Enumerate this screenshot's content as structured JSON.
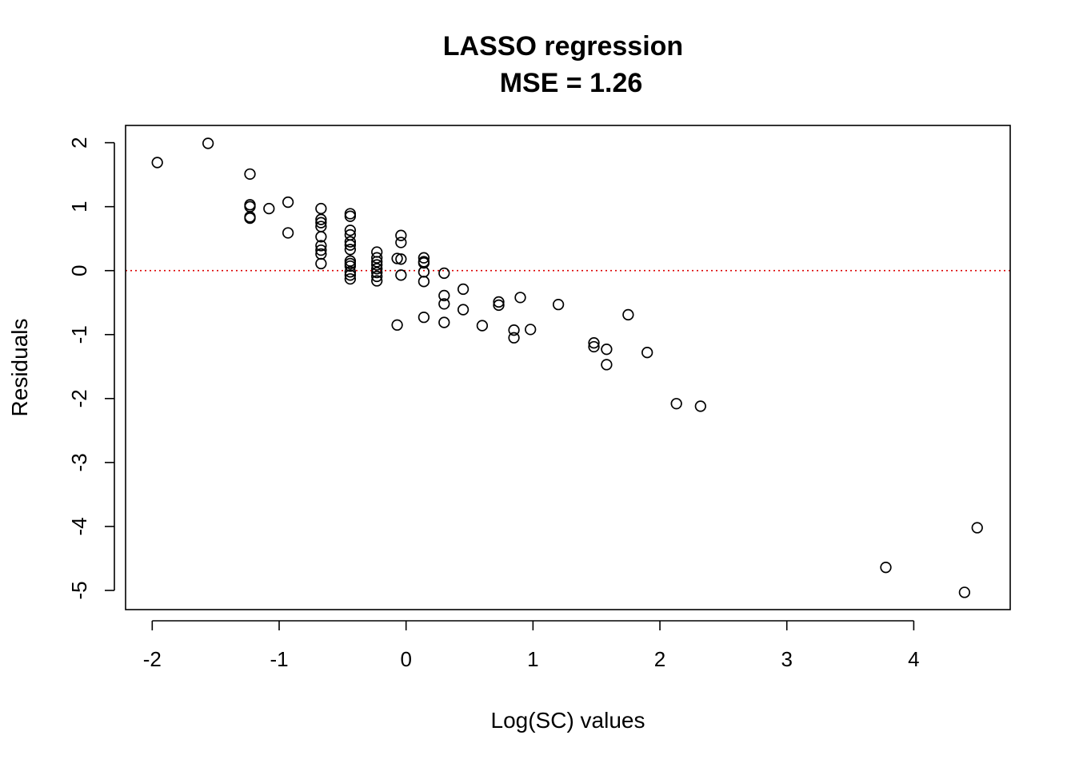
{
  "chart_data": {
    "type": "scatter",
    "title": "LASSO regression",
    "subtitle": "MSE = 1.26",
    "xlabel": "Log(SC) values",
    "ylabel": "Residuals",
    "xlim": [
      -2.21,
      4.76
    ],
    "ylim": [
      -5.3,
      2.27
    ],
    "xticks": [
      -2,
      -1,
      0,
      1,
      2,
      3,
      4
    ],
    "yticks": [
      -5,
      -4,
      -3,
      -2,
      -1,
      0,
      1,
      2
    ],
    "reference_line": {
      "y": 0,
      "color": "#dd0000",
      "style": "dotted"
    },
    "marker": {
      "shape": "open-circle",
      "color": "#000000"
    },
    "grid": false,
    "points": [
      {
        "x": -1.96,
        "y": 1.69
      },
      {
        "x": -1.56,
        "y": 1.99
      },
      {
        "x": -1.23,
        "y": 1.51
      },
      {
        "x": -1.23,
        "y": 1.03
      },
      {
        "x": -1.23,
        "y": 1.0
      },
      {
        "x": -1.23,
        "y": 0.84
      },
      {
        "x": -1.23,
        "y": 0.82
      },
      {
        "x": -1.08,
        "y": 0.97
      },
      {
        "x": -0.93,
        "y": 1.07
      },
      {
        "x": -0.93,
        "y": 0.59
      },
      {
        "x": -0.67,
        "y": 0.97
      },
      {
        "x": -0.67,
        "y": 0.8
      },
      {
        "x": -0.67,
        "y": 0.75
      },
      {
        "x": -0.67,
        "y": 0.69
      },
      {
        "x": -0.67,
        "y": 0.53
      },
      {
        "x": -0.67,
        "y": 0.39
      },
      {
        "x": -0.67,
        "y": 0.32
      },
      {
        "x": -0.67,
        "y": 0.26
      },
      {
        "x": -0.67,
        "y": 0.11
      },
      {
        "x": -0.44,
        "y": 0.89
      },
      {
        "x": -0.44,
        "y": 0.85
      },
      {
        "x": -0.44,
        "y": 0.63
      },
      {
        "x": -0.44,
        "y": 0.56
      },
      {
        "x": -0.44,
        "y": 0.45
      },
      {
        "x": -0.44,
        "y": 0.4
      },
      {
        "x": -0.44,
        "y": 0.33
      },
      {
        "x": -0.44,
        "y": 0.15
      },
      {
        "x": -0.44,
        "y": 0.11
      },
      {
        "x": -0.44,
        "y": 0.07
      },
      {
        "x": -0.44,
        "y": -0.02
      },
      {
        "x": -0.44,
        "y": -0.07
      },
      {
        "x": -0.44,
        "y": -0.13
      },
      {
        "x": -0.23,
        "y": 0.29
      },
      {
        "x": -0.23,
        "y": 0.2
      },
      {
        "x": -0.23,
        "y": 0.14
      },
      {
        "x": -0.23,
        "y": 0.09
      },
      {
        "x": -0.23,
        "y": 0.03
      },
      {
        "x": -0.23,
        "y": -0.03
      },
      {
        "x": -0.23,
        "y": -0.09
      },
      {
        "x": -0.23,
        "y": -0.16
      },
      {
        "x": -0.07,
        "y": 0.19
      },
      {
        "x": -0.07,
        "y": -0.85
      },
      {
        "x": -0.04,
        "y": 0.55
      },
      {
        "x": -0.04,
        "y": 0.44
      },
      {
        "x": -0.04,
        "y": 0.18
      },
      {
        "x": -0.04,
        "y": -0.07
      },
      {
        "x": 0.14,
        "y": 0.2
      },
      {
        "x": 0.14,
        "y": 0.14
      },
      {
        "x": 0.14,
        "y": 0.12
      },
      {
        "x": 0.14,
        "y": -0.02
      },
      {
        "x": 0.14,
        "y": -0.17
      },
      {
        "x": 0.14,
        "y": -0.73
      },
      {
        "x": 0.3,
        "y": -0.04
      },
      {
        "x": 0.3,
        "y": -0.39
      },
      {
        "x": 0.3,
        "y": -0.52
      },
      {
        "x": 0.3,
        "y": -0.81
      },
      {
        "x": 0.45,
        "y": -0.29
      },
      {
        "x": 0.45,
        "y": -0.61
      },
      {
        "x": 0.6,
        "y": -0.86
      },
      {
        "x": 0.73,
        "y": -0.49
      },
      {
        "x": 0.73,
        "y": -0.54
      },
      {
        "x": 0.85,
        "y": -0.93
      },
      {
        "x": 0.85,
        "y": -1.05
      },
      {
        "x": 0.9,
        "y": -0.42
      },
      {
        "x": 0.98,
        "y": -0.92
      },
      {
        "x": 1.2,
        "y": -0.53
      },
      {
        "x": 1.48,
        "y": -1.13
      },
      {
        "x": 1.48,
        "y": -1.19
      },
      {
        "x": 1.58,
        "y": -1.23
      },
      {
        "x": 1.58,
        "y": -1.47
      },
      {
        "x": 1.75,
        "y": -0.69
      },
      {
        "x": 1.9,
        "y": -1.28
      },
      {
        "x": 2.13,
        "y": -2.08
      },
      {
        "x": 2.32,
        "y": -2.12
      },
      {
        "x": 3.78,
        "y": -4.64
      },
      {
        "x": 4.4,
        "y": -5.03
      },
      {
        "x": 4.5,
        "y": -4.02
      }
    ]
  }
}
